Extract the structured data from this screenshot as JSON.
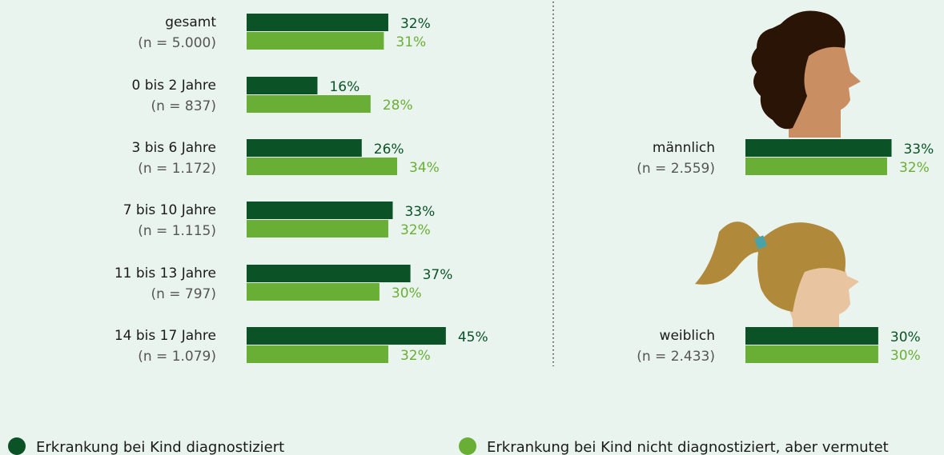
{
  "chart_data": [
    {
      "type": "bar",
      "orientation": "horizontal",
      "categories": [
        "gesamt",
        "0 bis 2 Jahre",
        "3 bis 6 Jahre",
        "7 bis 10 Jahre",
        "11 bis 13 Jahre",
        "14 bis 17 Jahre"
      ],
      "sample_sizes": [
        "(n = 5.000)",
        "(n = 837)",
        "(n = 1.172)",
        "(n = 1.115)",
        "(n = 797)",
        "(n = 1.079)"
      ],
      "series": [
        {
          "name": "Erkrankung bei Kind diagnostiziert",
          "color": "#0b5227",
          "values": [
            32,
            16,
            26,
            33,
            37,
            45
          ],
          "value_labels": [
            "32%",
            "16%",
            "26%",
            "33%",
            "37%",
            "45%"
          ]
        },
        {
          "name": "Erkrankung bei Kind nicht diagnostiziert, aber vermutet",
          "color": "#6aaf35",
          "values": [
            31,
            28,
            34,
            32,
            30,
            32
          ],
          "value_labels": [
            "31%",
            "28%",
            "34%",
            "32%",
            "30%",
            "32%"
          ]
        }
      ]
    },
    {
      "type": "bar",
      "orientation": "horizontal",
      "categories": [
        "männlich",
        "weiblich"
      ],
      "sample_sizes": [
        "(n = 2.559)",
        "(n = 2.433)"
      ],
      "series": [
        {
          "name": "Erkrankung bei Kind diagnostiziert",
          "color": "#0b5227",
          "values": [
            33,
            30
          ],
          "value_labels": [
            "33%",
            "30%"
          ]
        },
        {
          "name": "Erkrankung bei Kind nicht diagnostiziert, aber vermutet",
          "color": "#6aaf35",
          "values": [
            32,
            30
          ],
          "value_labels": [
            "32%",
            "30%"
          ]
        }
      ]
    }
  ]
}
